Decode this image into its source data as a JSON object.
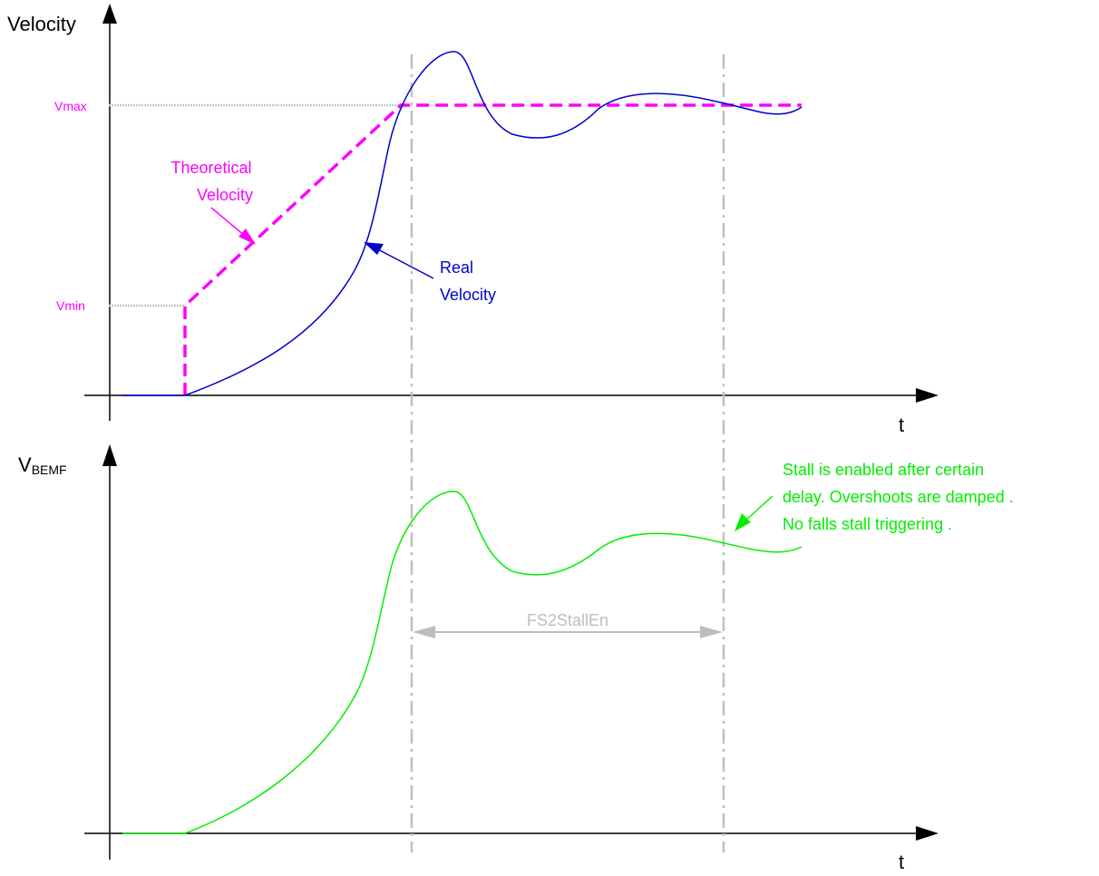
{
  "top_panel": {
    "y_axis_label": "Velocity",
    "x_axis_label": "t",
    "vmax_label": "Vmax",
    "vmin_label": "Vmin",
    "theoretical_label_line1": "Theoretical",
    "theoretical_label_line2": "Velocity",
    "real_label_line1": "Real",
    "real_label_line2": "Velocity"
  },
  "bottom_panel": {
    "y_axis_label_main": "V",
    "y_axis_label_sub": "BEMF",
    "x_axis_label": "t",
    "interval_label": "FS2StallEn",
    "note_line1": "Stall is enabled after certain",
    "note_line2": "delay. Overshoots are damped .",
    "note_line3": "No falls stall triggering ."
  },
  "colors": {
    "axes": "#000000",
    "theoretical": "#ff00ff",
    "real": "#0000cc",
    "bemf": "#00ee00",
    "guides": "#bfbfbf",
    "interval": "#bdbdbd"
  }
}
